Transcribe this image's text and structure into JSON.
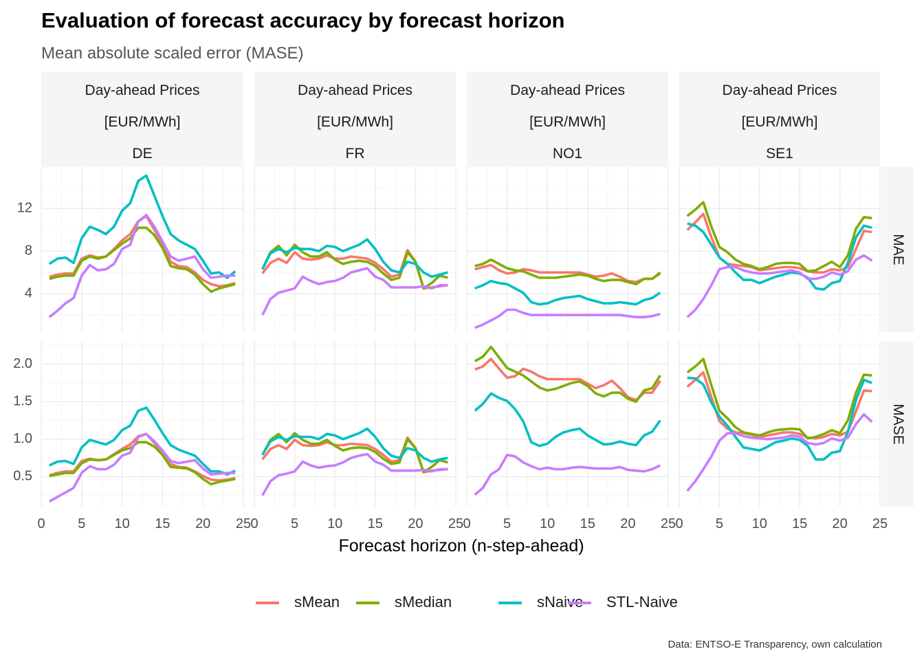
{
  "title": "Evaluation of forecast accuracy by forecast horizon",
  "subtitle": "Mean absolute scaled error (MASE)",
  "caption": "Data: ENTSO-E Transparency, own calculation",
  "colors": {
    "sMean": "#F8766D",
    "sMedian": "#7CAE00",
    "sNaive": "#00BFC4",
    "STL-Naive": "#C77CFF",
    "strip_bg": "#F5F5F5",
    "grid_major": "#EBEBEB",
    "grid_minor": "#F4F4F4"
  },
  "chart_data": {
    "type": "line",
    "facet_columns": [
      {
        "lines": [
          "Day-ahead Prices",
          "[EUR/MWh]",
          "DE"
        ]
      },
      {
        "lines": [
          "Day-ahead Prices",
          "[EUR/MWh]",
          "FR"
        ]
      },
      {
        "lines": [
          "Day-ahead Prices",
          "[EUR/MWh]",
          "NO1"
        ]
      },
      {
        "lines": [
          "Day-ahead Prices",
          "[EUR/MWh]",
          "SE1"
        ]
      }
    ],
    "facet_rows": [
      {
        "label": "MAE",
        "ylim": [
          0.4,
          15.9
        ],
        "yticks": [
          4,
          8,
          12
        ]
      },
      {
        "label": "MASE",
        "ylim": [
          0.1,
          2.3
        ],
        "yticks": [
          0.5,
          1.0,
          1.5,
          2.0
        ]
      }
    ],
    "xlabel": "Forecast horizon (n-step-ahead)",
    "xlim": [
      0,
      25
    ],
    "xticks": [
      0,
      5,
      10,
      15,
      20,
      25
    ],
    "grid": true,
    "legend_position": "bottom",
    "series_names": [
      "sMean",
      "sMedian",
      "sNaive",
      "STL-Naive"
    ],
    "panels": [
      {
        "row": 0,
        "col": 0,
        "series": {
          "sMean": [
            5.6,
            5.8,
            5.9,
            5.9,
            7.3,
            7.6,
            7.4,
            7.5,
            8.2,
            9.0,
            9.6,
            10.8,
            11.3,
            10.0,
            8.7,
            7.0,
            6.6,
            6.5,
            6.0,
            5.3,
            4.9,
            4.7,
            4.8,
            5.0
          ],
          "sMedian": [
            5.4,
            5.6,
            5.7,
            5.7,
            7.1,
            7.5,
            7.3,
            7.5,
            8.1,
            8.7,
            9.2,
            10.2,
            10.2,
            9.5,
            8.3,
            6.6,
            6.4,
            6.3,
            5.8,
            4.9,
            4.2,
            4.5,
            4.7,
            4.9
          ],
          "sNaive": [
            6.8,
            7.3,
            7.4,
            6.9,
            9.2,
            10.3,
            10.0,
            9.6,
            10.3,
            11.8,
            12.5,
            14.6,
            15.1,
            13.2,
            11.3,
            9.6,
            9.0,
            8.6,
            8.2,
            7.1,
            5.9,
            6.0,
            5.5,
            6.1
          ],
          "STL-Naive": [
            1.8,
            2.4,
            3.1,
            3.6,
            5.7,
            6.7,
            6.2,
            6.3,
            6.8,
            8.2,
            8.6,
            10.8,
            11.4,
            10.3,
            8.9,
            7.5,
            7.1,
            7.3,
            7.5,
            6.3,
            5.5,
            5.6,
            5.7,
            5.7
          ]
        }
      },
      {
        "row": 0,
        "col": 1,
        "series": {
          "sMean": [
            5.9,
            6.9,
            7.3,
            6.9,
            7.9,
            7.3,
            7.2,
            7.3,
            7.6,
            7.3,
            7.3,
            7.5,
            7.4,
            7.3,
            6.9,
            6.3,
            5.6,
            5.8,
            8.1,
            7.0,
            4.5,
            4.6,
            4.7,
            4.8
          ],
          "sMedian": [
            6.3,
            7.9,
            8.5,
            7.6,
            8.6,
            7.9,
            7.5,
            7.5,
            7.9,
            7.2,
            6.8,
            7.0,
            7.1,
            7.0,
            6.6,
            5.9,
            5.3,
            5.5,
            7.9,
            7.0,
            4.5,
            5.0,
            5.7,
            5.5
          ],
          "sNaive": [
            6.3,
            7.8,
            8.2,
            7.9,
            8.3,
            8.2,
            8.2,
            8.0,
            8.5,
            8.4,
            8.0,
            8.3,
            8.6,
            9.1,
            8.2,
            7.0,
            6.2,
            6.0,
            7.0,
            6.8,
            6.0,
            5.6,
            5.8,
            6.0
          ],
          "STL-Naive": [
            2.0,
            3.5,
            4.1,
            4.3,
            4.5,
            5.6,
            5.2,
            4.9,
            5.1,
            5.2,
            5.5,
            6.0,
            6.2,
            6.4,
            5.6,
            5.3,
            4.6,
            4.6,
            4.6,
            4.6,
            4.7,
            4.5,
            4.8,
            4.8
          ]
        }
      },
      {
        "row": 0,
        "col": 2,
        "series": {
          "sMean": [
            6.3,
            6.5,
            6.7,
            6.2,
            5.9,
            6.0,
            6.3,
            6.2,
            6.0,
            6.0,
            6.0,
            6.0,
            6.0,
            6.0,
            5.8,
            5.6,
            5.7,
            5.9,
            5.6,
            5.2,
            5.1,
            5.4,
            5.4,
            5.9
          ],
          "sMedian": [
            6.6,
            6.8,
            7.2,
            6.8,
            6.4,
            6.2,
            6.1,
            5.8,
            5.5,
            5.5,
            5.5,
            5.6,
            5.7,
            5.8,
            5.7,
            5.4,
            5.2,
            5.3,
            5.3,
            5.1,
            4.9,
            5.4,
            5.4,
            6.0
          ],
          "sNaive": [
            4.5,
            4.8,
            5.2,
            5.0,
            4.9,
            4.5,
            4.1,
            3.2,
            3.0,
            3.1,
            3.4,
            3.6,
            3.7,
            3.8,
            3.5,
            3.3,
            3.1,
            3.1,
            3.2,
            3.1,
            3.0,
            3.4,
            3.6,
            4.1
          ],
          "STL-Naive": [
            0.8,
            1.1,
            1.5,
            1.9,
            2.5,
            2.5,
            2.2,
            2.0,
            2.0,
            2.0,
            2.0,
            2.0,
            2.0,
            2.0,
            2.0,
            2.0,
            2.0,
            2.0,
            2.0,
            1.9,
            1.8,
            1.8,
            1.9,
            2.1
          ]
        }
      },
      {
        "row": 0,
        "col": 3,
        "series": {
          "sMean": [
            10.0,
            10.7,
            11.5,
            9.3,
            7.4,
            6.8,
            6.7,
            6.6,
            6.5,
            6.2,
            6.3,
            6.4,
            6.5,
            6.5,
            6.4,
            6.1,
            6.0,
            6.0,
            6.3,
            6.2,
            6.5,
            8.2,
            9.9,
            9.8
          ],
          "sMedian": [
            11.3,
            11.9,
            12.6,
            10.3,
            8.4,
            7.9,
            7.2,
            6.8,
            6.6,
            6.3,
            6.5,
            6.8,
            6.9,
            6.9,
            6.8,
            6.1,
            6.2,
            6.6,
            7.0,
            6.5,
            7.6,
            10.1,
            11.2,
            11.1
          ],
          "sNaive": [
            10.6,
            10.4,
            9.8,
            8.6,
            7.4,
            6.8,
            6.0,
            5.3,
            5.3,
            5.0,
            5.3,
            5.6,
            5.8,
            6.0,
            5.9,
            5.5,
            4.5,
            4.4,
            5.0,
            5.2,
            6.9,
            9.3,
            10.4,
            10.2
          ],
          "STL-Naive": [
            1.8,
            2.5,
            3.5,
            4.8,
            6.3,
            6.5,
            6.5,
            6.2,
            6.0,
            5.9,
            5.9,
            6.0,
            6.1,
            6.2,
            6.0,
            5.4,
            5.4,
            5.6,
            6.0,
            5.8,
            6.1,
            7.2,
            7.6,
            7.1
          ]
        }
      },
      {
        "row": 1,
        "col": 0,
        "series": {
          "sMean": [
            0.52,
            0.55,
            0.57,
            0.57,
            0.71,
            0.74,
            0.72,
            0.73,
            0.8,
            0.87,
            0.93,
            1.04,
            1.07,
            0.95,
            0.83,
            0.67,
            0.63,
            0.62,
            0.57,
            0.51,
            0.46,
            0.45,
            0.46,
            0.48
          ],
          "sMedian": [
            0.51,
            0.53,
            0.55,
            0.55,
            0.68,
            0.73,
            0.72,
            0.73,
            0.79,
            0.85,
            0.88,
            0.96,
            0.96,
            0.9,
            0.79,
            0.63,
            0.62,
            0.61,
            0.56,
            0.47,
            0.4,
            0.43,
            0.45,
            0.47
          ],
          "sNaive": [
            0.65,
            0.7,
            0.71,
            0.67,
            0.89,
            0.99,
            0.96,
            0.93,
            0.99,
            1.12,
            1.18,
            1.38,
            1.42,
            1.26,
            1.08,
            0.92,
            0.86,
            0.82,
            0.78,
            0.67,
            0.57,
            0.57,
            0.53,
            0.58
          ],
          "STL-Naive": [
            0.17,
            0.23,
            0.29,
            0.35,
            0.55,
            0.64,
            0.6,
            0.6,
            0.66,
            0.78,
            0.82,
            1.03,
            1.07,
            0.97,
            0.85,
            0.71,
            0.68,
            0.7,
            0.72,
            0.61,
            0.53,
            0.54,
            0.55,
            0.55
          ]
        }
      },
      {
        "row": 1,
        "col": 1,
        "series": {
          "sMean": [
            0.73,
            0.87,
            0.92,
            0.87,
            0.99,
            0.92,
            0.91,
            0.92,
            0.96,
            0.92,
            0.92,
            0.94,
            0.93,
            0.92,
            0.87,
            0.79,
            0.7,
            0.72,
            1.02,
            0.88,
            0.56,
            0.58,
            0.59,
            0.6
          ],
          "sMedian": [
            0.79,
            0.99,
            1.07,
            0.96,
            1.08,
            0.99,
            0.94,
            0.94,
            0.99,
            0.91,
            0.85,
            0.88,
            0.89,
            0.88,
            0.83,
            0.74,
            0.67,
            0.69,
            1.0,
            0.88,
            0.56,
            0.63,
            0.72,
            0.69
          ],
          "sNaive": [
            0.79,
            0.97,
            1.03,
            0.99,
            1.04,
            1.03,
            1.03,
            1.0,
            1.07,
            1.05,
            1.0,
            1.04,
            1.08,
            1.14,
            1.03,
            0.88,
            0.78,
            0.75,
            0.88,
            0.85,
            0.75,
            0.7,
            0.73,
            0.75
          ],
          "STL-Naive": [
            0.25,
            0.44,
            0.52,
            0.54,
            0.57,
            0.7,
            0.65,
            0.62,
            0.64,
            0.65,
            0.69,
            0.75,
            0.78,
            0.8,
            0.7,
            0.66,
            0.58,
            0.58,
            0.58,
            0.58,
            0.59,
            0.57,
            0.6,
            0.6
          ]
        }
      },
      {
        "row": 1,
        "col": 2,
        "series": {
          "sMean": [
            1.93,
            1.97,
            2.07,
            1.94,
            1.82,
            1.84,
            1.94,
            1.9,
            1.84,
            1.8,
            1.8,
            1.8,
            1.8,
            1.8,
            1.74,
            1.68,
            1.72,
            1.78,
            1.68,
            1.56,
            1.52,
            1.62,
            1.62,
            1.78
          ],
          "sMedian": [
            2.04,
            2.1,
            2.23,
            2.09,
            1.95,
            1.9,
            1.85,
            1.77,
            1.69,
            1.65,
            1.67,
            1.71,
            1.75,
            1.77,
            1.71,
            1.61,
            1.57,
            1.62,
            1.62,
            1.54,
            1.5,
            1.65,
            1.68,
            1.85
          ],
          "sNaive": [
            1.38,
            1.47,
            1.61,
            1.55,
            1.51,
            1.4,
            1.24,
            0.96,
            0.91,
            0.94,
            1.03,
            1.09,
            1.12,
            1.14,
            1.05,
            0.99,
            0.93,
            0.94,
            0.97,
            0.94,
            0.92,
            1.05,
            1.1,
            1.25
          ],
          "STL-Naive": [
            0.26,
            0.35,
            0.53,
            0.6,
            0.79,
            0.77,
            0.69,
            0.64,
            0.6,
            0.62,
            0.6,
            0.6,
            0.62,
            0.63,
            0.62,
            0.61,
            0.61,
            0.61,
            0.63,
            0.59,
            0.58,
            0.57,
            0.6,
            0.65
          ]
        }
      },
      {
        "row": 1,
        "col": 3,
        "series": {
          "sMean": [
            1.7,
            1.79,
            1.89,
            1.56,
            1.24,
            1.14,
            1.09,
            1.08,
            1.06,
            1.03,
            1.05,
            1.07,
            1.09,
            1.09,
            1.07,
            1.02,
            1.01,
            1.03,
            1.07,
            1.05,
            1.1,
            1.37,
            1.65,
            1.64
          ],
          "sMedian": [
            1.89,
            1.97,
            2.07,
            1.72,
            1.38,
            1.28,
            1.16,
            1.09,
            1.07,
            1.05,
            1.09,
            1.12,
            1.13,
            1.14,
            1.13,
            1.01,
            1.03,
            1.07,
            1.12,
            1.08,
            1.25,
            1.62,
            1.86,
            1.85
          ],
          "sNaive": [
            1.82,
            1.81,
            1.73,
            1.49,
            1.3,
            1.18,
            1.03,
            0.89,
            0.87,
            0.85,
            0.9,
            0.96,
            0.98,
            1.01,
            0.99,
            0.91,
            0.73,
            0.73,
            0.82,
            0.84,
            1.1,
            1.52,
            1.79,
            1.75
          ],
          "STL-Naive": [
            0.31,
            0.44,
            0.6,
            0.77,
            0.98,
            1.08,
            1.08,
            1.04,
            1.02,
            1.01,
            1.0,
            1.01,
            1.02,
            1.05,
            1.03,
            0.95,
            0.93,
            0.95,
            1.01,
            0.98,
            1.02,
            1.2,
            1.33,
            1.23
          ]
        }
      }
    ]
  }
}
